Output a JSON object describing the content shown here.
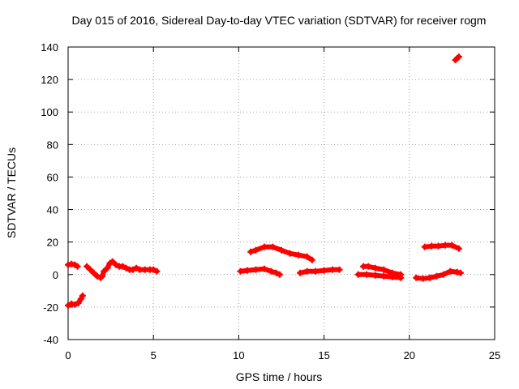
{
  "chart_data": {
    "type": "scatter",
    "title": "Day 015 of 2016, Sidereal Day-to-day VTEC variation (SDTVAR) for receiver rogm",
    "xlabel": "GPS time / hours",
    "ylabel": "SDTVAR / TECUs",
    "xlim": [
      0,
      25
    ],
    "ylim": [
      -40,
      140
    ],
    "xticks": [
      "0",
      "5",
      "10",
      "15",
      "20",
      "25"
    ],
    "yticks": [
      "-40",
      "-20",
      "0",
      "20",
      "40",
      "60",
      "80",
      "100",
      "120",
      "140"
    ],
    "grid": true,
    "marker": "+",
    "series": [
      {
        "name": "SDTVAR",
        "color": "#ff0000",
        "segments": [
          {
            "name": "seg-a",
            "x": [
              0.0,
              0.2,
              0.4,
              0.55
            ],
            "y": [
              6,
              6.5,
              6,
              5
            ]
          },
          {
            "name": "seg-b",
            "x": [
              0.0,
              0.2,
              0.4,
              0.6,
              0.75,
              0.85
            ],
            "y": [
              -19,
              -18,
              -18.5,
              -17.5,
              -15,
              -13
            ]
          },
          {
            "name": "seg-c",
            "x": [
              1.1,
              1.3,
              1.5,
              1.7,
              1.9,
              2.0,
              2.1,
              2.3,
              2.45,
              2.6,
              2.8,
              3.0,
              3.2,
              3.4,
              3.6,
              3.8,
              4.0,
              4.2,
              4.5,
              4.8,
              5.0,
              5.2
            ],
            "y": [
              5,
              3,
              1,
              -1,
              -2,
              -1,
              2,
              4,
              7,
              8,
              6,
              5,
              5,
              4,
              3,
              3,
              4,
              3,
              3,
              3,
              3,
              2
            ]
          },
          {
            "name": "seg-d",
            "x": [
              10.1,
              10.5,
              11.0,
              11.5,
              11.9,
              12.2,
              12.4
            ],
            "y": [
              2,
              2.5,
              3,
              3.5,
              2,
              1,
              0
            ]
          },
          {
            "name": "seg-e",
            "x": [
              10.7,
              11.0,
              11.5,
              12.0,
              12.5,
              13.0,
              13.5,
              14.0,
              14.3
            ],
            "y": [
              14,
              15,
              17,
              17,
              15,
              13,
              12,
              11,
              9
            ]
          },
          {
            "name": "seg-f",
            "x": [
              13.6,
              14.0,
              14.5,
              15.0,
              15.5,
              15.9
            ],
            "y": [
              1,
              2,
              2,
              2.5,
              3,
              3
            ]
          },
          {
            "name": "seg-g",
            "x": [
              17.0,
              17.5,
              18.0,
              18.5,
              19.0,
              19.5
            ],
            "y": [
              0,
              0,
              -0.5,
              -1,
              -1.5,
              -2
            ]
          },
          {
            "name": "seg-h",
            "x": [
              17.3,
              17.6,
              18.0,
              18.5,
              19.0,
              19.5
            ],
            "y": [
              5,
              5,
              4,
              3,
              1,
              0
            ]
          },
          {
            "name": "seg-i",
            "x": [
              20.4,
              20.8,
              21.2,
              21.6,
              22.0,
              22.4,
              22.8,
              23.0
            ],
            "y": [
              -2,
              -2.5,
              -2,
              -1,
              0,
              2,
              1.5,
              1
            ]
          },
          {
            "name": "seg-j",
            "x": [
              20.9,
              21.3,
              21.7,
              22.1,
              22.5,
              22.9
            ],
            "y": [
              17,
              17.5,
              17.5,
              18,
              18,
              16
            ]
          },
          {
            "name": "seg-k",
            "x": [
              22.7,
              22.8,
              22.9
            ],
            "y": [
              132,
              133,
              134
            ]
          }
        ]
      }
    ]
  }
}
